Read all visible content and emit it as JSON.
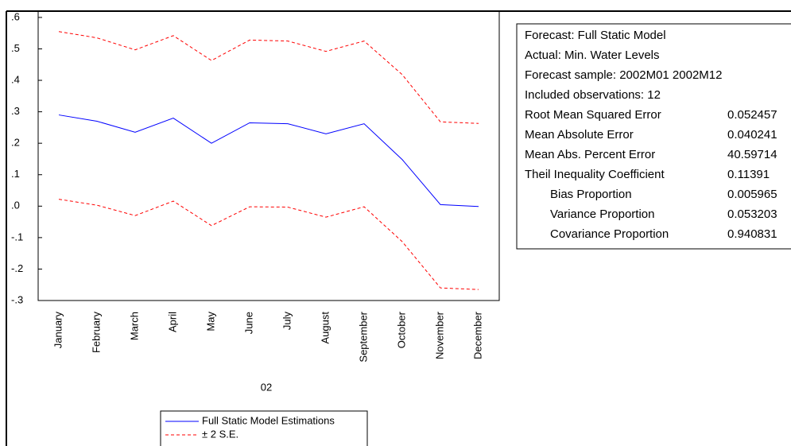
{
  "chart_data": {
    "type": "line",
    "categories": [
      "January",
      "February",
      "March",
      "April",
      "May",
      "June",
      "July",
      "August",
      "September",
      "October",
      "November",
      "December"
    ],
    "x_label": "02",
    "ylim": [
      -0.3,
      0.62
    ],
    "yticks": [
      {
        "value": 0.6,
        "label": ".6"
      },
      {
        "value": 0.5,
        "label": ".5"
      },
      {
        "value": 0.4,
        "label": ".4"
      },
      {
        "value": 0.3,
        "label": ".3"
      },
      {
        "value": 0.2,
        "label": ".2"
      },
      {
        "value": 0.1,
        "label": ".1"
      },
      {
        "value": 0,
        "label": ".0"
      },
      {
        "value": -0.1,
        "label": "-.1"
      },
      {
        "value": -0.2,
        "label": "-.2"
      },
      {
        "value": -0.3,
        "label": "-.3"
      }
    ],
    "series": [
      {
        "name": "Full Static Model Estimations",
        "color": "#0000ff",
        "dash": false,
        "values": [
          0.29,
          0.27,
          0.235,
          0.28,
          0.2,
          0.265,
          0.262,
          0.23,
          0.262,
          0.148,
          0.005,
          -0.001
        ]
      },
      {
        "name": "± 2 S.E.",
        "color": "#ff0000",
        "dash": true,
        "values": [
          0.555,
          0.535,
          0.497,
          0.542,
          0.463,
          0.528,
          0.525,
          0.492,
          0.525,
          0.418,
          0.268,
          0.263
        ]
      },
      {
        "name": null,
        "color": "#ff0000",
        "dash": true,
        "values": [
          0.022,
          0.003,
          -0.03,
          0.016,
          -0.062,
          -0.002,
          -0.003,
          -0.035,
          -0.002,
          -0.113,
          -0.26,
          -0.265
        ]
      }
    ]
  },
  "stats": {
    "header": [
      "Forecast: Full Static Model",
      "Actual: Min. Water Levels",
      "Forecast sample: 2002M01 2002M12",
      "Included observations: 12"
    ],
    "rows": [
      [
        "Root Mean Squared Error",
        0.052457
      ],
      [
        "Mean Absolute Error",
        0.040241
      ],
      [
        "Mean Abs. Percent Error",
        40.59714
      ],
      [
        "Theil Inequality Coefficient",
        0.11391
      ],
      [
        "Bias Proportion",
        0.005965
      ],
      [
        "Variance Proportion",
        0.053203
      ],
      [
        "Covariance Proportion",
        0.940831
      ]
    ]
  }
}
